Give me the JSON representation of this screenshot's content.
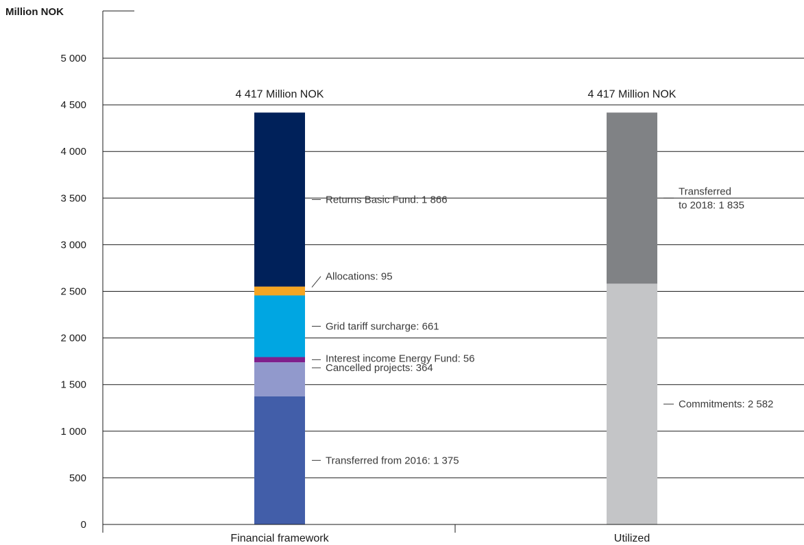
{
  "chart_data": {
    "type": "bar",
    "stacked": true,
    "ylabel": "Million NOK",
    "ylim": [
      0,
      5000
    ],
    "yticks": [
      0,
      500,
      1000,
      1500,
      2000,
      2500,
      3000,
      3500,
      4000,
      4500,
      5000
    ],
    "ytick_labels": [
      "0",
      "500",
      "1 000",
      "1 500",
      "2 000",
      "2 500",
      "3 000",
      "3 500",
      "4 000",
      "4 500",
      "5 000"
    ],
    "grid": true,
    "categories": [
      "Financial framework",
      "Utilized"
    ],
    "totals": [
      "4 417 Million NOK",
      "4 417 Million NOK"
    ],
    "bars": [
      {
        "category": "Financial framework",
        "segments": [
          {
            "value": 1375,
            "color": "#425ea9",
            "annotation": "Transferred from 2016: 1 375"
          },
          {
            "value": 364,
            "color": "#9199cc",
            "annotation": "Cancelled projects: 364"
          },
          {
            "value": 56,
            "color": "#7f1f8c",
            "annotation": "Interest income Energy Fund: 56"
          },
          {
            "value": 661,
            "color": "#00a6e2",
            "annotation": "Grid tariff surcharge: 661"
          },
          {
            "value": 95,
            "color": "#f5a523",
            "annotation": "Allocations: 95"
          },
          {
            "value": 1866,
            "color": "#00215a",
            "annotation": "Returns Basic Fund: 1 866"
          }
        ]
      },
      {
        "category": "Utilized",
        "segments": [
          {
            "value": 2582,
            "color": "#c4c5c7",
            "annotation": "Commitments: 2 582"
          },
          {
            "value": 1835,
            "color": "#808285",
            "annotation": "Transferred\nto 2018: 1 835"
          }
        ]
      }
    ]
  }
}
